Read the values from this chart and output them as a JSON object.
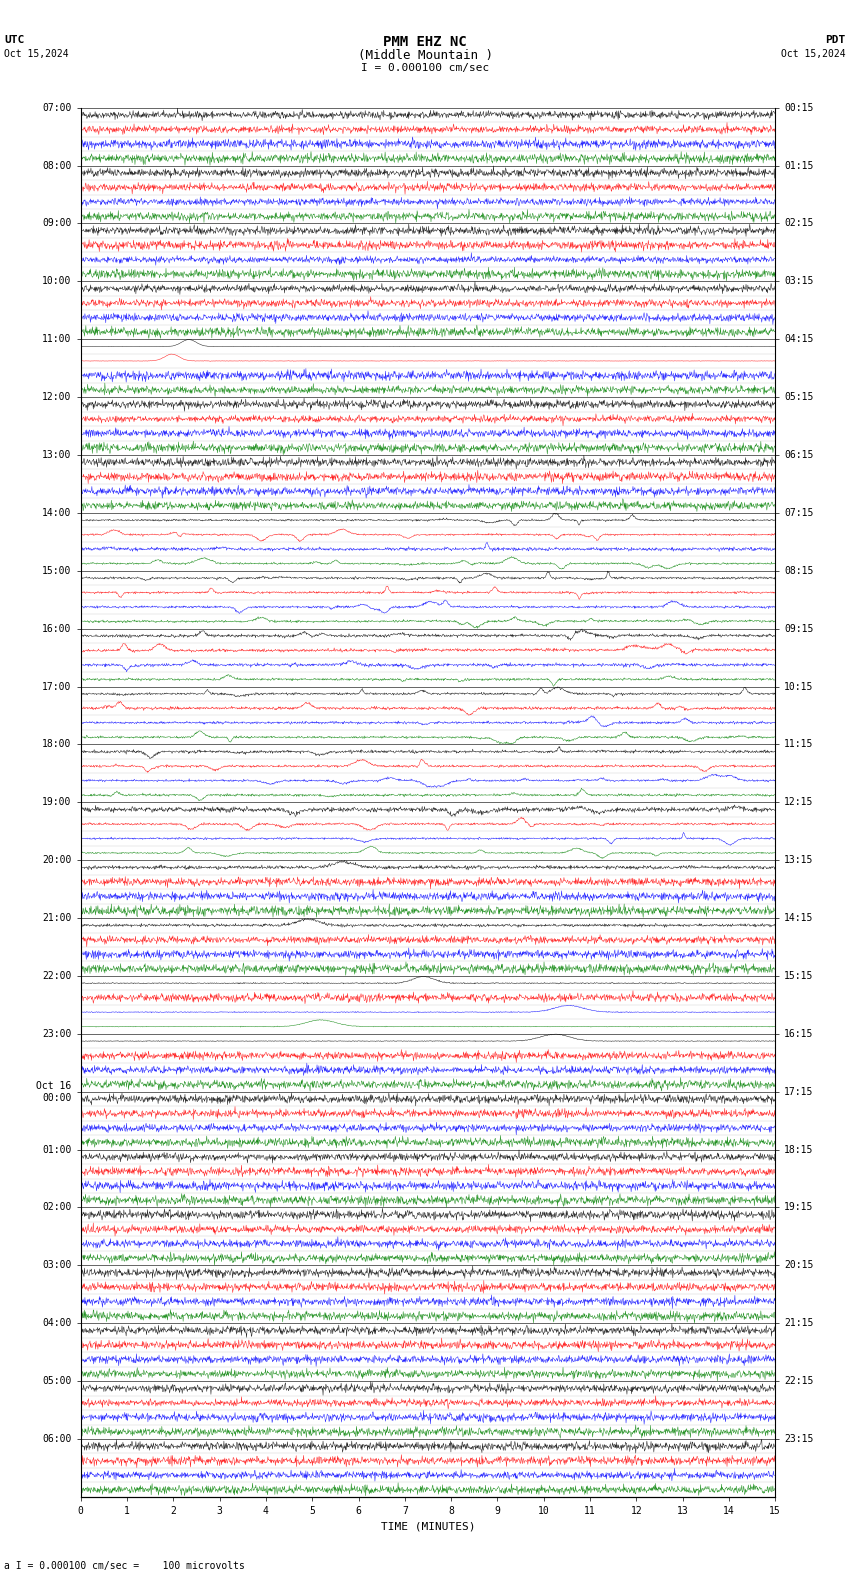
{
  "title_line1": "PMM EHZ NC",
  "title_line2": "(Middle Mountain )",
  "scale_label": "I = 0.000100 cm/sec",
  "left_label": "UTC",
  "right_label": "PDT",
  "left_date": "Oct 15,2024",
  "right_date": "Oct 15,2024",
  "bottom_label": "TIME (MINUTES)",
  "bottom_note": "a I = 0.000100 cm/sec =    100 microvolts",
  "xlim": [
    0,
    15
  ],
  "bg_color": "#ffffff",
  "trace_colors": [
    "black",
    "red",
    "blue",
    "green"
  ],
  "utc_hours": [
    "07:00",
    "08:00",
    "09:00",
    "10:00",
    "11:00",
    "12:00",
    "13:00",
    "14:00",
    "15:00",
    "16:00",
    "17:00",
    "18:00",
    "19:00",
    "20:00",
    "21:00",
    "22:00",
    "23:00",
    "Oct 16\n00:00",
    "01:00",
    "02:00",
    "03:00",
    "04:00",
    "05:00",
    "06:00"
  ],
  "pdt_hours": [
    "00:15",
    "01:15",
    "02:15",
    "03:15",
    "04:15",
    "05:15",
    "06:15",
    "07:15",
    "08:15",
    "09:15",
    "10:15",
    "11:15",
    "12:15",
    "13:15",
    "14:15",
    "15:15",
    "16:15",
    "17:15",
    "18:15",
    "19:15",
    "20:15",
    "21:15",
    "22:15",
    "23:15"
  ],
  "n_rows": 96,
  "fig_width": 8.5,
  "fig_height": 15.84
}
